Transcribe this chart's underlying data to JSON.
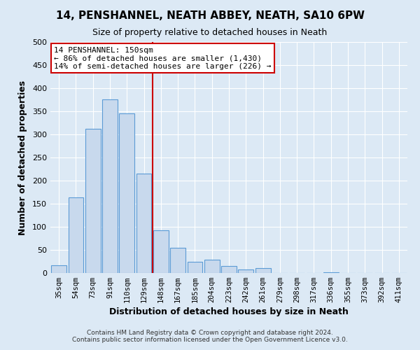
{
  "title": "14, PENSHANNEL, NEATH ABBEY, NEATH, SA10 6PW",
  "subtitle": "Size of property relative to detached houses in Neath",
  "xlabel": "Distribution of detached houses by size in Neath",
  "ylabel": "Number of detached properties",
  "bar_labels": [
    "35sqm",
    "54sqm",
    "73sqm",
    "91sqm",
    "110sqm",
    "129sqm",
    "148sqm",
    "167sqm",
    "185sqm",
    "204sqm",
    "223sqm",
    "242sqm",
    "261sqm",
    "279sqm",
    "298sqm",
    "317sqm",
    "336sqm",
    "355sqm",
    "373sqm",
    "392sqm",
    "411sqm"
  ],
  "bar_values": [
    16,
    164,
    312,
    376,
    345,
    215,
    93,
    55,
    25,
    29,
    15,
    8,
    10,
    0,
    0,
    0,
    2,
    0,
    0,
    0,
    0
  ],
  "bar_color": "#c8d9ed",
  "bar_edge_color": "#5b9bd5",
  "vline_color": "#cc0000",
  "annotation_title": "14 PENSHANNEL: 150sqm",
  "annotation_line1": "← 86% of detached houses are smaller (1,430)",
  "annotation_line2": "14% of semi-detached houses are larger (226) →",
  "annotation_box_color": "#ffffff",
  "annotation_box_edge": "#cc0000",
  "ylim": [
    0,
    500
  ],
  "yticks": [
    0,
    50,
    100,
    150,
    200,
    250,
    300,
    350,
    400,
    450,
    500
  ],
  "footer1": "Contains HM Land Registry data © Crown copyright and database right 2024.",
  "footer2": "Contains public sector information licensed under the Open Government Licence v3.0.",
  "bg_color": "#dce9f5",
  "plot_bg_color": "#dce9f5",
  "grid_color": "#ffffff",
  "title_fontsize": 11,
  "subtitle_fontsize": 9
}
